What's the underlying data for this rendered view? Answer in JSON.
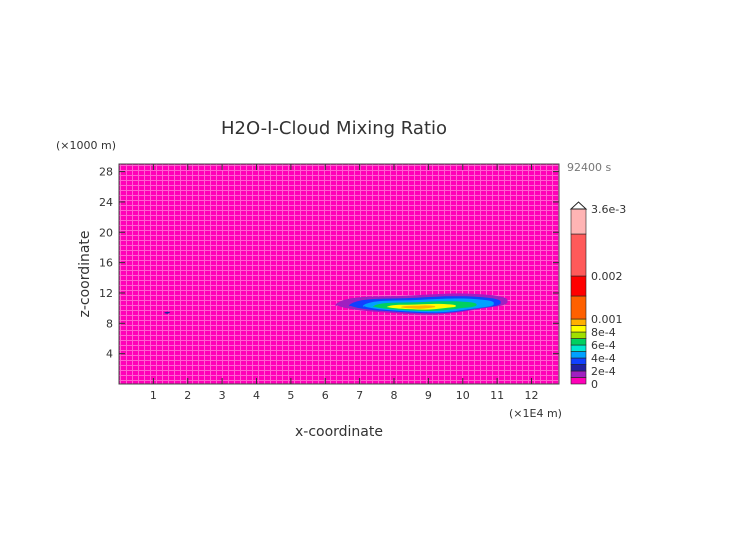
{
  "chart_data": {
    "type": "heatmap",
    "title": "H2O-I-Cloud Mixing Ratio",
    "xlabel": "x-coordinate",
    "ylabel": "z-coordinate",
    "x_unit": "(×1E4 m)",
    "y_unit": "(×1000 m)",
    "time_label": "92400 s",
    "xlim": [
      0,
      12.8
    ],
    "ylim": [
      0,
      29
    ],
    "x_ticks": [
      1,
      2,
      3,
      4,
      5,
      6,
      7,
      8,
      9,
      10,
      11,
      12
    ],
    "y_ticks": [
      4,
      8,
      12,
      16,
      20,
      24,
      28
    ],
    "background_color": "#ff00b8",
    "colorbar": {
      "levels": [
        0,
        0.0001,
        0.0002,
        0.0003,
        0.0004,
        0.0005,
        0.0006,
        0.0007,
        0.0008,
        0.0009,
        0.001,
        0.0015,
        0.002,
        0.003,
        0.0036
      ],
      "colors": [
        "#ff00b8",
        "#a020c0",
        "#2020a0",
        "#1040ff",
        "#00a0ff",
        "#00e8d0",
        "#00d060",
        "#a0e000",
        "#ffff00",
        "#ffb000",
        "#ff6000",
        "#ff0000",
        "#ff5a5a",
        "#ffb4b4"
      ],
      "labels": [
        {
          "value": 0,
          "text": "0"
        },
        {
          "value": 0.0002,
          "text": "2e-4"
        },
        {
          "value": 0.0004,
          "text": "4e-4"
        },
        {
          "value": 0.0006,
          "text": "6e-4"
        },
        {
          "value": 0.0008,
          "text": "8e-4"
        },
        {
          "value": 0.001,
          "text": "0.001"
        },
        {
          "value": 0.002,
          "text": "0.002"
        },
        {
          "value": 0.0036,
          "text": "3.6e-3"
        }
      ]
    },
    "cloud_contours": [
      {
        "level_index": 1,
        "cx": 8.8,
        "cz": 10.6,
        "rx": 2.5,
        "rz": 1.3
      },
      {
        "level_index": 3,
        "cx": 8.9,
        "cz": 10.5,
        "rx": 2.2,
        "rz": 1.05
      },
      {
        "level_index": 4,
        "cx": 9.0,
        "cz": 10.4,
        "rx": 1.9,
        "rz": 0.85
      },
      {
        "level_index": 6,
        "cx": 8.9,
        "cz": 10.3,
        "rx": 1.5,
        "rz": 0.6
      },
      {
        "level_index": 8,
        "cx": 8.8,
        "cz": 10.2,
        "rx": 1.0,
        "rz": 0.35
      },
      {
        "level_index": 9,
        "cx": 8.7,
        "cz": 10.15,
        "rx": 0.5,
        "rz": 0.2
      },
      {
        "level_index": 2,
        "cx": 1.4,
        "cz": 9.4,
        "rx": 0.08,
        "rz": 0.12
      }
    ]
  }
}
